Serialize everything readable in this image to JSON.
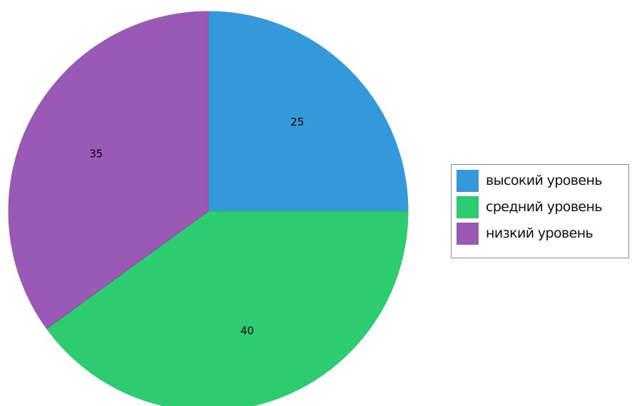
{
  "chart_data": {
    "type": "pie",
    "categories": [
      "высокий уровень",
      "средний уровень",
      "низкий уровень"
    ],
    "values": [
      25,
      40,
      35
    ],
    "colors": [
      "#3498db",
      "#2ecc71",
      "#9b59b6"
    ],
    "data_labels": [
      "25",
      "40",
      "35"
    ],
    "start": "12 o'clock",
    "direction": "clockwise",
    "legend_position": "right"
  }
}
